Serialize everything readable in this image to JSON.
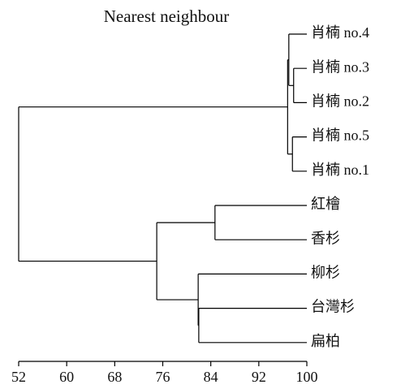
{
  "chart_data": {
    "type": "dendrogram",
    "title": "Nearest neighbour",
    "xlim": [
      52,
      100
    ],
    "xticks": [
      52,
      60,
      68,
      76,
      84,
      92,
      100
    ],
    "color": "#000000",
    "tree": {
      "height": 52,
      "children": [
        {
          "height": 96.8,
          "children": [
            {
              "height": 97.0,
              "children": [
                {
                  "label": "肖楠 no.4"
                },
                {
                  "height": 97.8,
                  "children": [
                    {
                      "label": "肖楠 no.3"
                    },
                    {
                      "label": "肖楠 no.2"
                    }
                  ]
                }
              ]
            },
            {
              "height": 97.6,
              "children": [
                {
                  "label": "肖楠 no.5"
                },
                {
                  "label": "肖楠 no.1"
                }
              ]
            }
          ]
        },
        {
          "height": 75.0,
          "children": [
            {
              "height": 84.7,
              "children": [
                {
                  "label": "紅檜"
                },
                {
                  "label": "香杉"
                }
              ]
            },
            {
              "height": 81.9,
              "children": [
                {
                  "label": "柳杉"
                },
                {
                  "height": 82.0,
                  "children": [
                    {
                      "label": "台灣杉"
                    },
                    {
                      "label": "扁柏"
                    }
                  ]
                }
              ]
            }
          ]
        }
      ]
    }
  }
}
